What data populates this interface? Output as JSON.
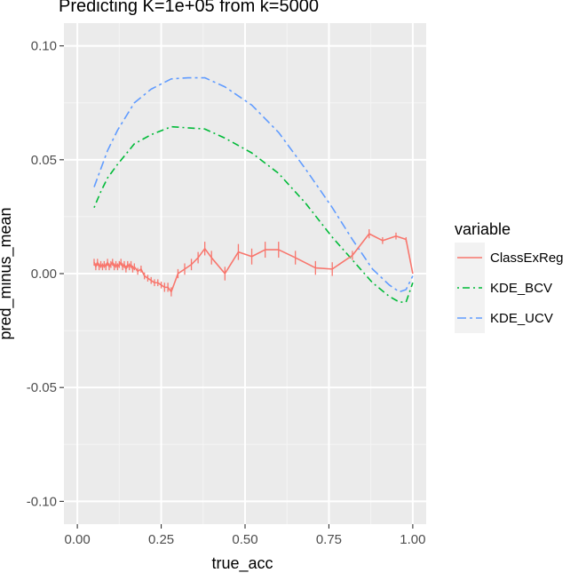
{
  "chart_data": {
    "type": "line",
    "title": "Predicting K=1e+05 from k=5000",
    "xlabel": "true_acc",
    "ylabel": "pred_minus_mean",
    "xlim": [
      -0.04,
      1.04
    ],
    "ylim": [
      -0.11,
      0.11
    ],
    "x_ticks": [
      0.0,
      0.25,
      0.5,
      0.75,
      1.0
    ],
    "x_tick_labels": [
      "0.00",
      "0.25",
      "0.50",
      "0.75",
      "1.00"
    ],
    "y_ticks": [
      -0.1,
      -0.05,
      0.0,
      0.05,
      0.1
    ],
    "y_tick_labels": [
      "-0.10",
      "-0.05",
      "0.00",
      "0.05",
      "0.10"
    ],
    "grid": true,
    "legend": {
      "title": "variable",
      "placement": "right"
    },
    "series": [
      {
        "name": "ClassExReg",
        "color": "#F8766D",
        "dash": "solid",
        "error_bars": true,
        "points": [
          {
            "x": 0.05,
            "y": 0.005,
            "err": 0.0015
          },
          {
            "x": 0.055,
            "y": 0.003,
            "err": 0.0015
          },
          {
            "x": 0.06,
            "y": 0.005,
            "err": 0.0015
          },
          {
            "x": 0.065,
            "y": 0.003,
            "err": 0.0015
          },
          {
            "x": 0.07,
            "y": 0.004,
            "err": 0.0015
          },
          {
            "x": 0.075,
            "y": 0.003,
            "err": 0.0015
          },
          {
            "x": 0.08,
            "y": 0.004,
            "err": 0.0015
          },
          {
            "x": 0.085,
            "y": 0.003,
            "err": 0.0015
          },
          {
            "x": 0.09,
            "y": 0.005,
            "err": 0.0015
          },
          {
            "x": 0.095,
            "y": 0.003,
            "err": 0.0015
          },
          {
            "x": 0.1,
            "y": 0.004,
            "err": 0.0015
          },
          {
            "x": 0.105,
            "y": 0.005,
            "err": 0.0015
          },
          {
            "x": 0.11,
            "y": 0.003,
            "err": 0.0015
          },
          {
            "x": 0.115,
            "y": 0.004,
            "err": 0.0015
          },
          {
            "x": 0.12,
            "y": 0.003,
            "err": 0.0015
          },
          {
            "x": 0.125,
            "y": 0.004,
            "err": 0.0015
          },
          {
            "x": 0.13,
            "y": 0.005,
            "err": 0.0015
          },
          {
            "x": 0.135,
            "y": 0.003,
            "err": 0.0015
          },
          {
            "x": 0.14,
            "y": 0.004,
            "err": 0.0015
          },
          {
            "x": 0.145,
            "y": 0.002,
            "err": 0.0015
          },
          {
            "x": 0.15,
            "y": 0.004,
            "err": 0.0015
          },
          {
            "x": 0.155,
            "y": 0.003,
            "err": 0.0015
          },
          {
            "x": 0.16,
            "y": 0.004,
            "err": 0.0015
          },
          {
            "x": 0.165,
            "y": 0.002,
            "err": 0.0015
          },
          {
            "x": 0.17,
            "y": 0.003,
            "err": 0.0015
          },
          {
            "x": 0.18,
            "y": 0.001,
            "err": 0.0015
          },
          {
            "x": 0.19,
            "y": 0.002,
            "err": 0.0015
          },
          {
            "x": 0.2,
            "y": -0.001,
            "err": 0.0015
          },
          {
            "x": 0.21,
            "y": -0.002,
            "err": 0.0015
          },
          {
            "x": 0.22,
            "y": -0.003,
            "err": 0.0015
          },
          {
            "x": 0.23,
            "y": -0.004,
            "err": 0.0015
          },
          {
            "x": 0.24,
            "y": -0.004,
            "err": 0.0015
          },
          {
            "x": 0.25,
            "y": -0.005,
            "err": 0.0015
          },
          {
            "x": 0.26,
            "y": -0.006,
            "err": 0.002
          },
          {
            "x": 0.27,
            "y": -0.006,
            "err": 0.002
          },
          {
            "x": 0.28,
            "y": -0.008,
            "err": 0.002
          },
          {
            "x": 0.3,
            "y": 0.0,
            "err": 0.002
          },
          {
            "x": 0.32,
            "y": 0.002,
            "err": 0.0025
          },
          {
            "x": 0.34,
            "y": 0.004,
            "err": 0.0025
          },
          {
            "x": 0.36,
            "y": 0.007,
            "err": 0.0025
          },
          {
            "x": 0.38,
            "y": 0.011,
            "err": 0.003
          },
          {
            "x": 0.4,
            "y": 0.007,
            "err": 0.003
          },
          {
            "x": 0.44,
            "y": 0.0,
            "err": 0.003
          },
          {
            "x": 0.48,
            "y": 0.0095,
            "err": 0.0035
          },
          {
            "x": 0.52,
            "y": 0.0075,
            "err": 0.0035
          },
          {
            "x": 0.56,
            "y": 0.0105,
            "err": 0.0035
          },
          {
            "x": 0.6,
            "y": 0.0105,
            "err": 0.0035
          },
          {
            "x": 0.65,
            "y": 0.007,
            "err": 0.003
          },
          {
            "x": 0.71,
            "y": 0.0025,
            "err": 0.003
          },
          {
            "x": 0.76,
            "y": 0.002,
            "err": 0.003
          },
          {
            "x": 0.82,
            "y": 0.008,
            "err": 0.002
          },
          {
            "x": 0.87,
            "y": 0.0175,
            "err": 0.002
          },
          {
            "x": 0.91,
            "y": 0.0145,
            "err": 0.0015
          },
          {
            "x": 0.95,
            "y": 0.0165,
            "err": 0.0015
          },
          {
            "x": 0.98,
            "y": 0.015,
            "err": 0.001
          },
          {
            "x": 1.0,
            "y": 0.0,
            "err": 0.0
          }
        ]
      },
      {
        "name": "KDE_BCV",
        "color": "#00BA38",
        "dash": "dotdash",
        "error_bars": false,
        "points": [
          {
            "x": 0.05,
            "y": 0.029
          },
          {
            "x": 0.07,
            "y": 0.036
          },
          {
            "x": 0.09,
            "y": 0.042
          },
          {
            "x": 0.12,
            "y": 0.048
          },
          {
            "x": 0.17,
            "y": 0.057
          },
          {
            "x": 0.22,
            "y": 0.061
          },
          {
            "x": 0.28,
            "y": 0.0645
          },
          {
            "x": 0.33,
            "y": 0.064
          },
          {
            "x": 0.38,
            "y": 0.0635
          },
          {
            "x": 0.44,
            "y": 0.0595
          },
          {
            "x": 0.52,
            "y": 0.053
          },
          {
            "x": 0.6,
            "y": 0.044
          },
          {
            "x": 0.68,
            "y": 0.031
          },
          {
            "x": 0.76,
            "y": 0.016
          },
          {
            "x": 0.82,
            "y": 0.006
          },
          {
            "x": 0.88,
            "y": -0.004
          },
          {
            "x": 0.93,
            "y": -0.01
          },
          {
            "x": 0.96,
            "y": -0.0125
          },
          {
            "x": 0.98,
            "y": -0.0125
          },
          {
            "x": 1.0,
            "y": -0.004
          }
        ]
      },
      {
        "name": "KDE_UCV",
        "color": "#619CFF",
        "dash": "longdash",
        "error_bars": false,
        "points": [
          {
            "x": 0.05,
            "y": 0.038
          },
          {
            "x": 0.07,
            "y": 0.046
          },
          {
            "x": 0.09,
            "y": 0.054
          },
          {
            "x": 0.12,
            "y": 0.063
          },
          {
            "x": 0.17,
            "y": 0.075
          },
          {
            "x": 0.22,
            "y": 0.081
          },
          {
            "x": 0.28,
            "y": 0.0855
          },
          {
            "x": 0.33,
            "y": 0.086
          },
          {
            "x": 0.38,
            "y": 0.086
          },
          {
            "x": 0.44,
            "y": 0.082
          },
          {
            "x": 0.52,
            "y": 0.074
          },
          {
            "x": 0.6,
            "y": 0.062
          },
          {
            "x": 0.68,
            "y": 0.046
          },
          {
            "x": 0.76,
            "y": 0.029
          },
          {
            "x": 0.82,
            "y": 0.015
          },
          {
            "x": 0.88,
            "y": 0.002
          },
          {
            "x": 0.93,
            "y": -0.005
          },
          {
            "x": 0.96,
            "y": -0.008
          },
          {
            "x": 0.98,
            "y": -0.007
          },
          {
            "x": 1.0,
            "y": -0.001
          }
        ]
      }
    ]
  }
}
